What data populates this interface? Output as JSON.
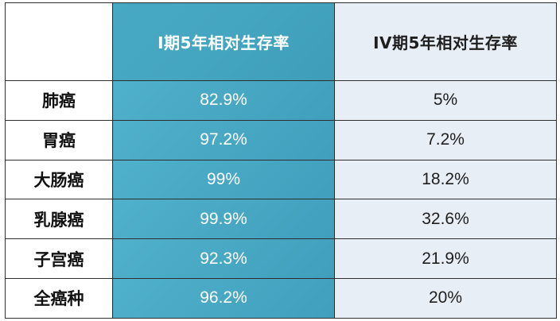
{
  "table": {
    "headers": {
      "corner": "",
      "stage1": "I期5年相对生存率",
      "stage4": "IV期5年相对生存率"
    },
    "rows": [
      {
        "cancer": "肺癌",
        "stage1": "82.9%",
        "stage4": "5%"
      },
      {
        "cancer": "胃癌",
        "stage1": "97.2%",
        "stage4": "7.2%"
      },
      {
        "cancer": "大肠癌",
        "stage1": "99%",
        "stage4": "18.2%"
      },
      {
        "cancer": "乳腺癌",
        "stage1": "99.9%",
        "stage4": "32.6%"
      },
      {
        "cancer": "子宫癌",
        "stage1": "92.3%",
        "stage4": "21.9%"
      },
      {
        "cancer": "全癌种",
        "stage1": "96.2%",
        "stage4": "20%"
      }
    ]
  },
  "colors": {
    "stage1_column": "#46a7c3",
    "stage4_column": "#e8eef5",
    "grid_lines": "#2e2e2e",
    "stage1_text": "#ffffff",
    "label_text": "#111111"
  }
}
